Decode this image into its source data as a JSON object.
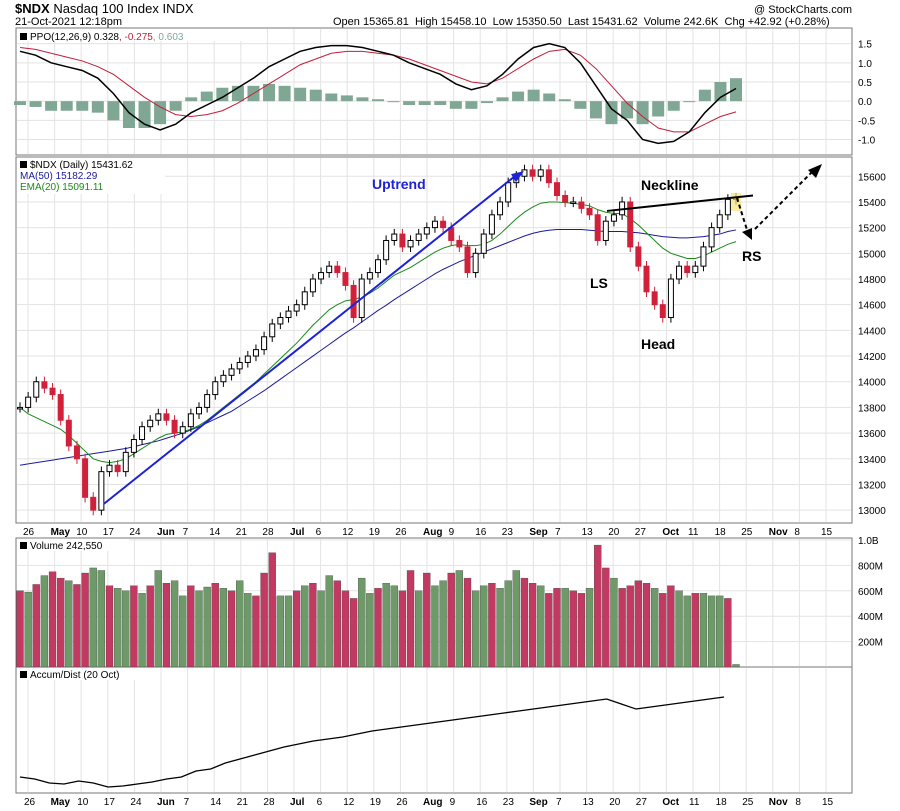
{
  "header": {
    "symbol": "$NDX",
    "name": "Nasdaq 100 Index",
    "exchange": "INDX",
    "date": "21-Oct-2021 12:18pm",
    "watermark": "@ StockCharts.com",
    "quote": [
      {
        "label": "Open",
        "value": "15365.81"
      },
      {
        "label": "High",
        "value": "15458.10"
      },
      {
        "label": "Low",
        "value": "15350.50"
      },
      {
        "label": "Last",
        "value": "15431.62"
      },
      {
        "label": "Volume",
        "value": "242.6K"
      },
      {
        "label": "Chg",
        "value": "+42.92 (+0.28%)"
      }
    ]
  },
  "colors": {
    "up": "#000000",
    "down": "#d0203a",
    "ma50": "#1a1a9c",
    "ema20": "#1a8a1a",
    "ppo": "#000000",
    "signal": "#c21e3a",
    "hist": "#7fa793",
    "vol_up": "#6e9a6a",
    "vol_down": "#c23a62",
    "trend": "#1d21d8",
    "ad": "#000000"
  },
  "chart_data": [
    {
      "type": "line",
      "panel": "ppo",
      "legend": {
        "label": "PPO(12,26,9)",
        "ppo": "0.328",
        "signal": "-0.275",
        "hist": "0.603"
      },
      "ylim": [
        -1.3,
        1.7
      ],
      "yticks": [
        "1.5",
        "1.0",
        "0.5",
        "0.0",
        "-0.5",
        "-1.0"
      ],
      "ppo": [
        1.3,
        1.2,
        1.0,
        0.9,
        0.8,
        0.6,
        0.2,
        -0.3,
        -0.6,
        -0.75,
        -0.6,
        -0.3,
        -0.1,
        0.1,
        0.35,
        0.6,
        0.9,
        1.1,
        1.3,
        1.4,
        1.45,
        1.45,
        1.4,
        1.3,
        1.2,
        1.0,
        0.85,
        0.7,
        0.45,
        0.3,
        0.4,
        0.7,
        1.1,
        1.4,
        1.5,
        1.4,
        1.0,
        0.4,
        -0.2,
        -0.5,
        -1.0,
        -1.1,
        -1.05,
        -0.8,
        -0.3,
        0.1,
        0.33
      ],
      "signal": [
        1.4,
        1.35,
        1.25,
        1.15,
        1.05,
        0.9,
        0.7,
        0.4,
        0.1,
        -0.15,
        -0.35,
        -0.4,
        -0.35,
        -0.25,
        -0.05,
        0.2,
        0.45,
        0.7,
        0.95,
        1.1,
        1.25,
        1.3,
        1.3,
        1.25,
        1.2,
        1.1,
        0.95,
        0.8,
        0.65,
        0.5,
        0.45,
        0.6,
        0.85,
        1.1,
        1.3,
        1.35,
        1.2,
        0.85,
        0.4,
        -0.05,
        -0.4,
        -0.7,
        -0.8,
        -0.8,
        -0.6,
        -0.4,
        -0.28
      ],
      "histogram": [
        -0.1,
        -0.15,
        -0.25,
        -0.25,
        -0.25,
        -0.3,
        -0.5,
        -0.7,
        -0.7,
        -0.6,
        -0.25,
        0.1,
        0.25,
        0.35,
        0.4,
        0.4,
        0.45,
        0.4,
        0.35,
        0.3,
        0.2,
        0.15,
        0.1,
        0.05,
        0.0,
        -0.1,
        -0.1,
        -0.1,
        -0.2,
        -0.2,
        -0.05,
        0.1,
        0.25,
        0.3,
        0.2,
        0.05,
        -0.2,
        -0.45,
        -0.6,
        -0.45,
        -0.6,
        -0.4,
        -0.25,
        0.0,
        0.3,
        0.5,
        0.6
      ]
    },
    {
      "type": "candlestick",
      "panel": "price",
      "legend": {
        "price": "$NDX (Daily) 15431.62",
        "ma": "MA(50) 15182.29",
        "ema": "EMA(20) 15091.11"
      },
      "ylim": [
        12900,
        15750
      ],
      "yticks": [
        13000,
        13200,
        13400,
        13600,
        13800,
        14000,
        14200,
        14400,
        14600,
        14800,
        15000,
        15200,
        15400,
        15600
      ],
      "close": [
        13800,
        13880,
        14000,
        13950,
        13900,
        13700,
        13500,
        13400,
        13100,
        13000,
        13300,
        13350,
        13300,
        13450,
        13550,
        13650,
        13700,
        13750,
        13700,
        13600,
        13650,
        13750,
        13800,
        13900,
        14000,
        14050,
        14100,
        14150,
        14200,
        14250,
        14350,
        14450,
        14500,
        14550,
        14600,
        14700,
        14800,
        14850,
        14900,
        14850,
        14750,
        14500,
        14800,
        14850,
        14950,
        15100,
        15150,
        15050,
        15100,
        15150,
        15200,
        15250,
        15200,
        15100,
        15050,
        14850,
        15000,
        15150,
        15300,
        15400,
        15550,
        15600,
        15650,
        15600,
        15650,
        15550,
        15450,
        15400,
        15400,
        15350,
        15300,
        15100,
        15250,
        15300,
        15400,
        15050,
        14900,
        14700,
        14600,
        14500,
        14800,
        14900,
        14850,
        14900,
        15050,
        15200,
        15300,
        15420,
        15430
      ],
      "ma50": [
        13350,
        13360,
        13370,
        13380,
        13390,
        13400,
        13410,
        13420,
        13430,
        13440,
        13450,
        13460,
        13470,
        13480,
        13495,
        13510,
        13525,
        13540,
        13560,
        13580,
        13600,
        13625,
        13650,
        13680,
        13710,
        13740,
        13770,
        13810,
        13850,
        13890,
        13930,
        13975,
        14020,
        14065,
        14110,
        14155,
        14200,
        14245,
        14290,
        14335,
        14380,
        14420,
        14465,
        14510,
        14555,
        14595,
        14640,
        14680,
        14720,
        14760,
        14800,
        14840,
        14875,
        14905,
        14935,
        14960,
        14985,
        15010,
        15035,
        15060,
        15085,
        15110,
        15135,
        15155,
        15170,
        15180,
        15185,
        15185,
        15185,
        15185,
        15180,
        15175,
        15170,
        15170,
        15170,
        15165,
        15160,
        15150,
        15140,
        15130,
        15125,
        15120,
        15120,
        15125,
        15130,
        15140,
        15150,
        15170,
        15182
      ],
      "ema20": [
        13800,
        13750,
        13720,
        13690,
        13660,
        13630,
        13580,
        13520,
        13460,
        13400,
        13380,
        13370,
        13380,
        13400,
        13440,
        13480,
        13520,
        13560,
        13590,
        13600,
        13610,
        13630,
        13660,
        13700,
        13750,
        13800,
        13850,
        13900,
        13950,
        14000,
        14060,
        14120,
        14180,
        14240,
        14300,
        14370,
        14440,
        14500,
        14560,
        14600,
        14630,
        14640,
        14660,
        14690,
        14730,
        14780,
        14830,
        14860,
        14890,
        14930,
        14970,
        15010,
        15040,
        15060,
        15070,
        15060,
        15060,
        15070,
        15100,
        15150,
        15210,
        15270,
        15320,
        15360,
        15390,
        15400,
        15400,
        15395,
        15390,
        15380,
        15370,
        15340,
        15320,
        15310,
        15310,
        15270,
        15220,
        15160,
        15100,
        15040,
        15000,
        14980,
        14960,
        14960,
        14980,
        15010,
        15040,
        15070,
        15091
      ],
      "xticks": [
        {
          "day": "26",
          "mon": ""
        },
        {
          "day": "",
          "mon": "May"
        },
        {
          "day": "10",
          "mon": ""
        },
        {
          "day": "17",
          "mon": ""
        },
        {
          "day": "24",
          "mon": ""
        },
        {
          "day": "",
          "mon": "Jun"
        },
        {
          "day": "7",
          "mon": ""
        },
        {
          "day": "14",
          "mon": ""
        },
        {
          "day": "21",
          "mon": ""
        },
        {
          "day": "28",
          "mon": ""
        },
        {
          "day": "",
          "mon": "Jul"
        },
        {
          "day": "6",
          "mon": ""
        },
        {
          "day": "12",
          "mon": ""
        },
        {
          "day": "19",
          "mon": ""
        },
        {
          "day": "26",
          "mon": ""
        },
        {
          "day": "",
          "mon": "Aug"
        },
        {
          "day": "9",
          "mon": ""
        },
        {
          "day": "16",
          "mon": ""
        },
        {
          "day": "23",
          "mon": ""
        },
        {
          "day": "",
          "mon": "Sep"
        },
        {
          "day": "7",
          "mon": ""
        },
        {
          "day": "13",
          "mon": ""
        },
        {
          "day": "20",
          "mon": ""
        },
        {
          "day": "27",
          "mon": ""
        },
        {
          "day": "",
          "mon": "Oct"
        },
        {
          "day": "11",
          "mon": ""
        },
        {
          "day": "18",
          "mon": ""
        },
        {
          "day": "25",
          "mon": ""
        },
        {
          "day": "",
          "mon": "Nov"
        },
        {
          "day": "8",
          "mon": ""
        },
        {
          "day": "15",
          "mon": ""
        }
      ],
      "annotations": {
        "uptrend": "Uptrend",
        "neckline": "Neckline",
        "ls": "LS",
        "head": "Head",
        "rs": "RS"
      }
    },
    {
      "type": "bar",
      "panel": "volume",
      "legend": "Volume 242,550",
      "ylim": [
        0,
        1000
      ],
      "yticks": [
        "1.0B",
        "800M",
        "600M",
        "400M",
        "200M"
      ],
      "values": [
        600,
        590,
        650,
        720,
        750,
        700,
        680,
        650,
        740,
        780,
        760,
        640,
        620,
        600,
        640,
        580,
        640,
        760,
        660,
        680,
        560,
        640,
        600,
        630,
        660,
        620,
        600,
        680,
        580,
        560,
        740,
        900,
        560,
        560,
        600,
        640,
        660,
        600,
        720,
        680,
        600,
        540,
        700,
        580,
        620,
        660,
        640,
        600,
        760,
        600,
        740,
        640,
        680,
        740,
        760,
        700,
        600,
        640,
        660,
        620,
        680,
        760,
        700,
        660,
        640,
        580,
        620,
        620,
        600,
        580,
        620,
        960,
        780,
        700,
        620,
        640,
        680,
        660,
        620,
        580,
        640,
        600,
        560,
        580,
        580,
        560,
        560,
        540,
        20
      ],
      "colors": [
        "d",
        "u",
        "d",
        "u",
        "d",
        "d",
        "u",
        "d",
        "d",
        "u",
        "u",
        "d",
        "u",
        "u",
        "d",
        "u",
        "d",
        "u",
        "d",
        "u",
        "u",
        "d",
        "u",
        "u",
        "d",
        "u",
        "d",
        "u",
        "u",
        "d",
        "d",
        "d",
        "u",
        "u",
        "d",
        "u",
        "d",
        "u",
        "u",
        "d",
        "d",
        "d",
        "u",
        "u",
        "d",
        "u",
        "u",
        "d",
        "d",
        "u",
        "d",
        "u",
        "u",
        "d",
        "u",
        "d",
        "u",
        "u",
        "d",
        "u",
        "u",
        "u",
        "d",
        "d",
        "u",
        "d",
        "d",
        "u",
        "d",
        "d",
        "u",
        "d",
        "d",
        "u",
        "d",
        "d",
        "d",
        "d",
        "u",
        "d",
        "d",
        "u",
        "u",
        "d",
        "u",
        "u",
        "u",
        "d",
        "u"
      ]
    },
    {
      "type": "line",
      "panel": "accum_dist",
      "legend": "Accum/Dist (20 Oct)",
      "values": [
        0.12,
        0.1,
        0.06,
        0.05,
        0.08,
        0.06,
        0.02,
        0.03,
        0.05,
        0.07,
        0.1,
        0.12,
        0.18,
        0.2,
        0.26,
        0.3,
        0.34,
        0.38,
        0.42,
        0.45,
        0.48,
        0.5,
        0.52,
        0.55,
        0.58,
        0.6,
        0.62,
        0.64,
        0.66,
        0.68,
        0.7,
        0.72,
        0.74,
        0.76,
        0.78,
        0.8,
        0.82,
        0.84,
        0.86,
        0.88,
        0.9,
        0.85,
        0.8,
        0.82,
        0.84,
        0.86,
        0.88,
        0.9,
        0.92
      ],
      "xticks": [
        "26",
        "May",
        "10",
        "17",
        "24",
        "Jun",
        "7",
        "14",
        "21",
        "28",
        "Jul",
        "6",
        "12",
        "19",
        "26",
        "Aug",
        "9",
        "16",
        "23",
        "Sep",
        "7",
        "13",
        "20",
        "27",
        "Oct",
        "11",
        "18",
        "25",
        "Nov",
        "8",
        "15"
      ]
    }
  ]
}
